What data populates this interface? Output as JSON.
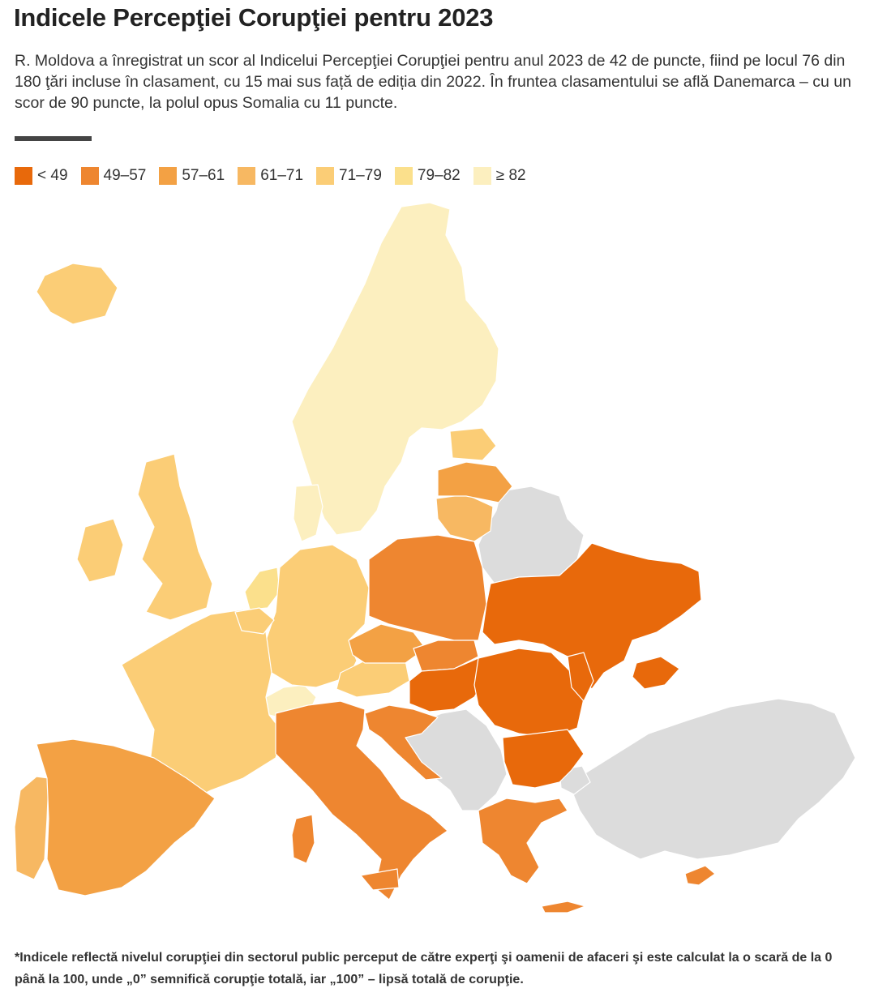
{
  "title": "Indicele Percepţiei Corupţiei pentru 2023",
  "subtitle": "R. Moldova a înregistrat un scor al Indicelui Percepţiei Corupţiei pentru anul 2023 de 42 de puncte, fiind pe locul 76 din 180 ţări incluse în clasament, cu 15 mai sus față de ediția din 2022. În fruntea clasamentului se află Danemarca – cu un scor de 90 puncte, la polul opus Somalia cu 11 puncte.",
  "legend": [
    {
      "label": "< 49",
      "color": "#e8690b"
    },
    {
      "label": "49–57",
      "color": "#ee8630"
    },
    {
      "label": "57–61",
      "color": "#f3a144"
    },
    {
      "label": "61–71",
      "color": "#f7b862"
    },
    {
      "label": "71–79",
      "color": "#fbcd76"
    },
    {
      "label": "79–82",
      "color": "#fbe08c"
    },
    {
      "label": "≥ 82",
      "color": "#fcefbf"
    }
  ],
  "no_data_color": "#dcdcdc",
  "footnote": "*Indicele reflectă nivelul corupţiei din sectorul public perceput de către experţi şi oamenii de afaceri şi este calculat la o scară de la 0 până la 100, unde „0” semnifică corupţie totală, iar „100” – lipsă totală de corupţie."
}
